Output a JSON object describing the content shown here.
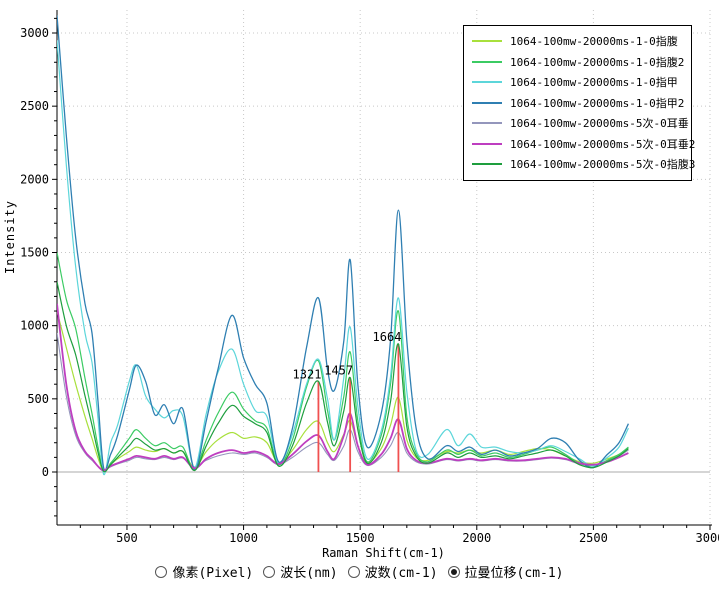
{
  "window": {
    "background": "#ffffff"
  },
  "chart_data": {
    "type": "line",
    "title": "",
    "xlabel": "Raman Shift(cm-1)",
    "ylabel": "Intensity",
    "xlim": [
      200,
      3000
    ],
    "ylim": [
      -360,
      3160
    ],
    "grid": "dotted",
    "legend_position": "top-right",
    "x_axis": {
      "major_ticks": [
        500,
        1000,
        1500,
        2000,
        2500,
        3000
      ],
      "minor_step": 100
    },
    "y_axis": {
      "major_ticks": [
        0,
        500,
        1000,
        1500,
        2000,
        2500,
        3000
      ],
      "minor_step": 100
    },
    "zero_line_color": "#ababab",
    "grid_color": "#c8c8c8",
    "annotation_color": "#f05050",
    "annotations": [
      {
        "x": 1321,
        "label": "1321",
        "line_top": 620
      },
      {
        "x": 1457,
        "label": "1457",
        "line_top": 645
      },
      {
        "x": 1664,
        "label": "1664",
        "line_top": 875
      }
    ],
    "x": [
      200,
      240,
      280,
      320,
      350,
      375,
      400,
      430,
      460,
      510,
      540,
      580,
      620,
      660,
      700,
      740,
      790,
      840,
      890,
      950,
      1000,
      1050,
      1100,
      1150,
      1210,
      1270,
      1321,
      1360,
      1390,
      1430,
      1457,
      1490,
      1530,
      1590,
      1630,
      1664,
      1700,
      1740,
      1790,
      1870,
      1920,
      1970,
      2020,
      2080,
      2140,
      2200,
      2260,
      2320,
      2380,
      2440,
      2500,
      2560,
      2610,
      2650
    ],
    "series": [
      {
        "name": "1064-100mw-20000ms-1-0指腹",
        "color": "#a8e03c",
        "width": 1.2,
        "values": [
          1100,
          850,
          600,
          380,
          230,
          100,
          5,
          50,
          90,
          140,
          170,
          150,
          140,
          160,
          130,
          140,
          30,
          140,
          220,
          270,
          230,
          240,
          200,
          60,
          150,
          290,
          345,
          200,
          140,
          260,
          350,
          180,
          60,
          160,
          320,
          510,
          220,
          100,
          80,
          140,
          130,
          150,
          130,
          150,
          120,
          140,
          160,
          150,
          110,
          70,
          60,
          90,
          120,
          160
        ]
      },
      {
        "name": "1064-100mw-20000ms-1-0指腹2",
        "color": "#3bcb63",
        "width": 1.2,
        "values": [
          1500,
          1180,
          980,
          640,
          400,
          180,
          10,
          60,
          120,
          230,
          290,
          230,
          180,
          200,
          160,
          170,
          15,
          220,
          400,
          545,
          430,
          350,
          300,
          50,
          220,
          580,
          760,
          420,
          220,
          520,
          820,
          350,
          70,
          250,
          600,
          1100,
          380,
          130,
          70,
          150,
          120,
          150,
          110,
          130,
          100,
          120,
          150,
          170,
          120,
          60,
          40,
          80,
          120,
          170
        ]
      },
      {
        "name": "1064-100mw-20000ms-1-0指甲",
        "color": "#5cd6da",
        "width": 1.2,
        "values": [
          2950,
          2100,
          1400,
          950,
          750,
          380,
          -15,
          200,
          320,
          620,
          730,
          520,
          430,
          370,
          420,
          380,
          30,
          400,
          680,
          840,
          600,
          420,
          380,
          60,
          260,
          600,
          770,
          500,
          220,
          650,
          990,
          450,
          90,
          280,
          650,
          1190,
          550,
          150,
          120,
          290,
          180,
          260,
          170,
          170,
          140,
          130,
          150,
          180,
          140,
          90,
          40,
          100,
          170,
          300
        ]
      },
      {
        "name": "1064-100mw-20000ms-1-0指甲2",
        "color": "#2f7fb2",
        "width": 1.3,
        "values": [
          3120,
          2300,
          1600,
          1150,
          950,
          500,
          30,
          120,
          250,
          560,
          730,
          620,
          390,
          460,
          330,
          430,
          15,
          350,
          700,
          1070,
          780,
          600,
          470,
          70,
          300,
          850,
          1190,
          700,
          560,
          900,
          1450,
          600,
          170,
          400,
          900,
          1790,
          900,
          300,
          90,
          180,
          140,
          170,
          120,
          150,
          110,
          130,
          160,
          230,
          200,
          80,
          30,
          120,
          200,
          330
        ]
      },
      {
        "name": "1064-100mw-20000ms-5次-0耳垂",
        "color": "#9496bc",
        "width": 1.1,
        "values": [
          950,
          520,
          250,
          130,
          80,
          40,
          15,
          35,
          55,
          80,
          100,
          90,
          85,
          100,
          85,
          95,
          35,
          80,
          110,
          130,
          120,
          130,
          100,
          50,
          100,
          170,
          200,
          120,
          80,
          180,
          290,
          140,
          45,
          100,
          180,
          270,
          130,
          70,
          55,
          85,
          75,
          85,
          75,
          85,
          75,
          75,
          85,
          95,
          85,
          55,
          45,
          75,
          110,
          150
        ]
      },
      {
        "name": "1064-100mw-20000ms-5次-0耳垂2",
        "color": "#be3ec0",
        "width": 1.8,
        "values": [
          1150,
          600,
          280,
          140,
          90,
          40,
          10,
          40,
          60,
          90,
          110,
          100,
          90,
          110,
          90,
          100,
          25,
          90,
          130,
          150,
          130,
          140,
          110,
          55,
          120,
          210,
          250,
          140,
          90,
          250,
          400,
          180,
          50,
          120,
          230,
          360,
          160,
          80,
          60,
          90,
          80,
          90,
          80,
          90,
          80,
          80,
          90,
          100,
          90,
          60,
          50,
          70,
          100,
          130
        ]
      },
      {
        "name": "1064-100mw-20000ms-5次-0指腹3",
        "color": "#1e9e3e",
        "width": 1.2,
        "values": [
          1300,
          1000,
          800,
          520,
          320,
          140,
          5,
          50,
          100,
          180,
          230,
          190,
          150,
          160,
          130,
          140,
          10,
          180,
          330,
          455,
          380,
          330,
          270,
          40,
          180,
          470,
          620,
          340,
          180,
          420,
          645,
          290,
          60,
          200,
          480,
          875,
          310,
          110,
          60,
          130,
          100,
          130,
          100,
          110,
          90,
          110,
          130,
          150,
          110,
          50,
          30,
          70,
          110,
          160
        ]
      }
    ]
  },
  "footer": {
    "options": [
      {
        "label": "像素(Pixel)",
        "selected": false
      },
      {
        "label": "波长(nm)",
        "selected": false
      },
      {
        "label": "波数(cm-1)",
        "selected": false
      },
      {
        "label": "拉曼位移(cm-1)",
        "selected": true
      }
    ]
  }
}
